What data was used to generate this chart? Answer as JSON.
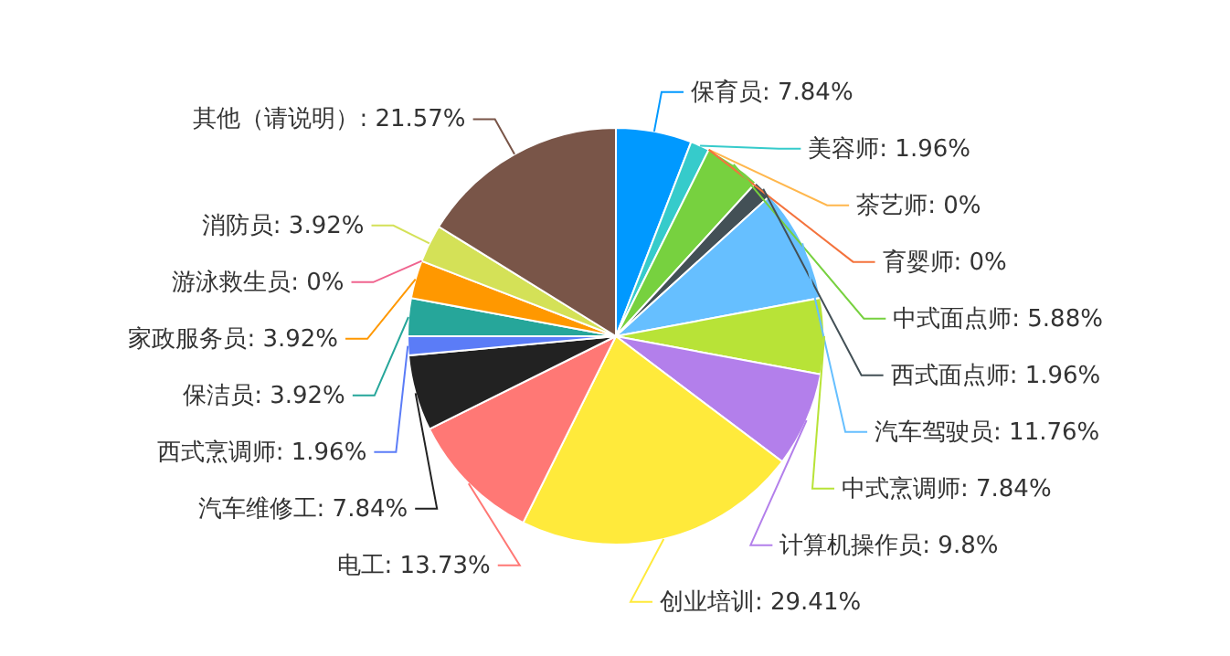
{
  "chart_data": {
    "type": "pie",
    "categories": [
      "保育员",
      "美容师",
      "茶艺师",
      "育婴师",
      "中式面点师",
      "西式面点师",
      "汽车驾驶员",
      "中式烹调师",
      "计算机操作员",
      "创业培训",
      "电工",
      "汽车维修工",
      "西式烹调师",
      "保洁员",
      "家政服务员",
      "游泳救生员",
      "消防员",
      "其他（请说明）"
    ],
    "values": [
      7.84,
      1.96,
      0,
      0,
      5.88,
      1.96,
      11.76,
      7.84,
      9.8,
      29.41,
      13.73,
      7.84,
      1.96,
      3.92,
      3.92,
      0,
      3.92,
      21.57
    ],
    "colors": [
      "#0099ff",
      "#36cbcb",
      "#ffb74d",
      "#f4733d",
      "#77d13f",
      "#435056",
      "#66bfff",
      "#b8e337",
      "#b37feb",
      "#ffea3b",
      "#ff7875",
      "#222222",
      "#5b7cf7",
      "#26a69a",
      "#ff9800",
      "#f0648f",
      "#d4e157",
      "#795548"
    ],
    "value_labels": [
      ": 7.84%",
      ": 1.96%",
      ": 0%",
      ": 0%",
      ": 5.88%",
      ": 1.96%",
      ": 11.76%",
      ": 7.84%",
      ": 9.8%",
      ": 29.41%",
      ": 13.73%",
      ": 7.84%",
      ": 1.96%",
      ": 3.92%",
      ": 3.92%",
      ": 0%",
      ": 3.92%",
      ": 21.57%"
    ]
  }
}
